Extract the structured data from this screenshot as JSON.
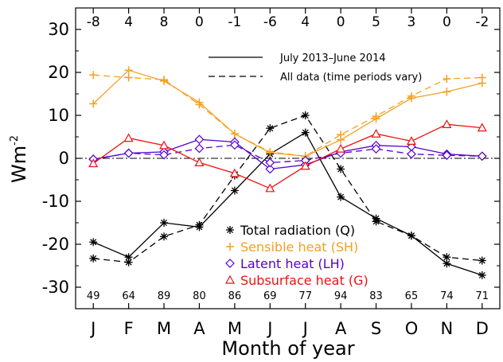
{
  "chart_data": {
    "type": "line",
    "xlabel": "Month of year",
    "ylabel": "Wm",
    "ylabel_sup": "-2",
    "ylim": [
      -35,
      35
    ],
    "yticks": [
      -30,
      -20,
      -10,
      0,
      10,
      20,
      30
    ],
    "ytick_labels": [
      "-30",
      "-20",
      "-10",
      "0",
      "10",
      "20",
      "30"
    ],
    "categories": [
      "J",
      "F",
      "M",
      "A",
      "M",
      "J",
      "J",
      "A",
      "S",
      "O",
      "N",
      "D"
    ],
    "top_values": [
      "-8",
      "4",
      "8",
      "0",
      "-1",
      "-6",
      "4",
      "0",
      "5",
      "3",
      "0",
      "-2"
    ],
    "bottom_values": [
      "49",
      "64",
      "89",
      "80",
      "86",
      "69",
      "77",
      "94",
      "83",
      "65",
      "74",
      "71"
    ],
    "zero_line": "dash-dot",
    "line_styles": [
      {
        "label": "July 2013–June 2014",
        "dash": "solid"
      },
      {
        "label": "All data (time periods vary)",
        "dash": "dashed"
      }
    ],
    "series": [
      {
        "name": "Total radiation (Q)",
        "color": "#000000",
        "marker": "asterisk",
        "solid": [
          -19.5,
          -23,
          -15,
          -16,
          -7.5,
          1,
          6,
          -9,
          -14,
          -18,
          -24.5,
          -27.2
        ],
        "dashed": [
          -23.3,
          -24.2,
          -18.2,
          -15.5,
          -4,
          7,
          10,
          -2.5,
          -14.7,
          -18,
          -23,
          -23.8
        ]
      },
      {
        "name": "Sensible heat (SH)",
        "color": "#f5a020",
        "marker": "plus",
        "solid": [
          12.7,
          20.5,
          18,
          13,
          5.7,
          1.3,
          0.5,
          4.3,
          9.2,
          14,
          15.5,
          17.5
        ],
        "dashed": [
          19.4,
          18.8,
          18.3,
          12.5,
          5.7,
          1.5,
          0.5,
          5.5,
          9.8,
          14.5,
          18.5,
          18.8
        ]
      },
      {
        "name": "Latent heat (LH)",
        "color": "#5500cc",
        "marker": "diamond",
        "solid": [
          -0.2,
          1.2,
          1.5,
          4.4,
          3.8,
          -2.5,
          -1.5,
          1.5,
          3,
          2.7,
          1,
          0.5
        ],
        "dashed": [
          -0.2,
          1.2,
          0.8,
          2.3,
          3.1,
          -1,
          -0.5,
          1.2,
          2.2,
          1,
          0.7,
          0.5
        ]
      },
      {
        "name": "Subsurface heat (G)",
        "color": "#ee1111",
        "marker": "triangle",
        "solid": [
          -1.2,
          4.7,
          3,
          -1,
          -3.5,
          -7,
          -1.8,
          2.2,
          5.7,
          4,
          7.9,
          7.1
        ]
      }
    ]
  }
}
